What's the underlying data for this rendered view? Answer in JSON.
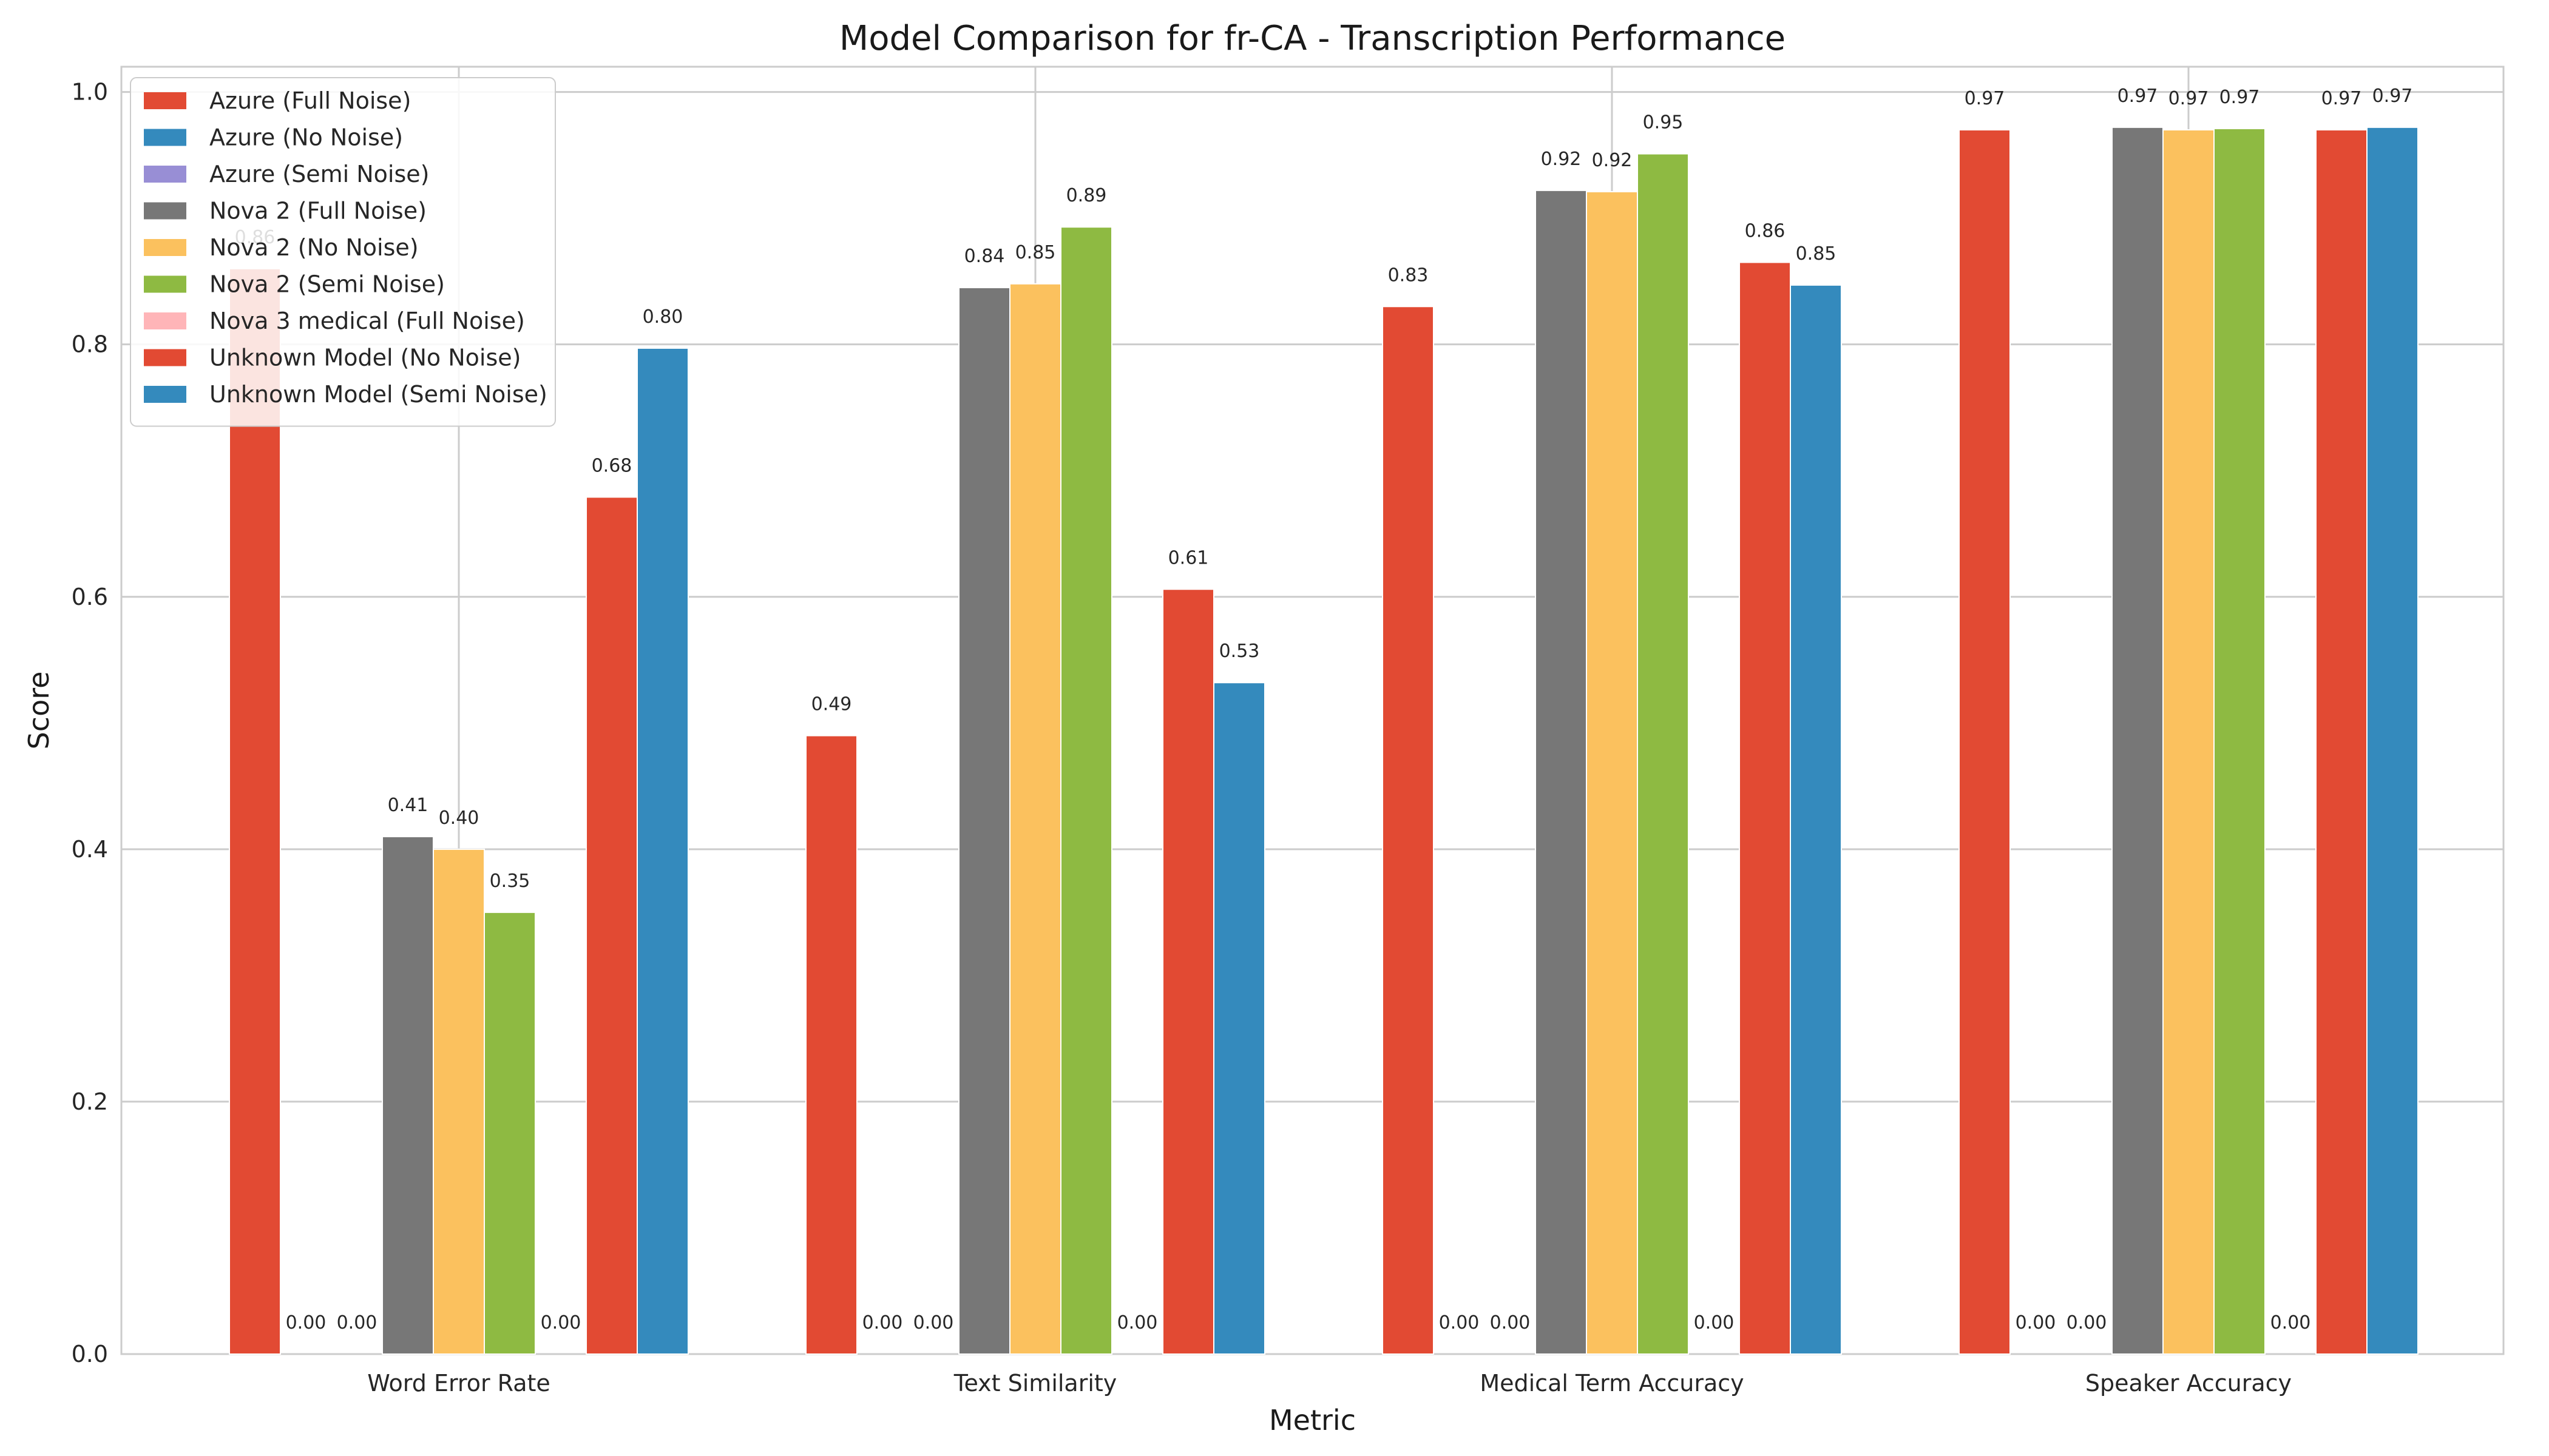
{
  "chart_data": {
    "type": "bar",
    "title": "Model Comparison for fr-CA - Transcription Performance",
    "xlabel": "Metric",
    "ylabel": "Score",
    "ylim": [
      0,
      1.02
    ],
    "yticks": [
      "0.0",
      "0.2",
      "0.4",
      "0.6",
      "0.8",
      "1.0"
    ],
    "ytick_values": [
      0,
      0.2,
      0.4,
      0.6,
      0.8,
      1.0
    ],
    "grid": true,
    "legend_position": "top-left",
    "categories": [
      "Word Error Rate",
      "Text Similarity",
      "Medical Term Accuracy",
      "Speaker Accuracy"
    ],
    "series": [
      {
        "name": "Azure (Full Noise)",
        "color": "#E24A33",
        "values": [
          0.86,
          0.49,
          0.83,
          0.97
        ],
        "labels": [
          "0.86",
          "0.49",
          "0.83",
          "0.97"
        ]
      },
      {
        "name": "Azure (No Noise)",
        "color": "#348ABD",
        "values": [
          0.0,
          0.0,
          0.0,
          0.0
        ],
        "labels": [
          "0.00",
          "0.00",
          "0.00",
          "0.00"
        ]
      },
      {
        "name": "Azure (Semi Noise)",
        "color": "#988ED5",
        "values": [
          0.0,
          0.0,
          0.0,
          0.0
        ],
        "labels": [
          "0.00",
          "0.00",
          "0.00",
          "0.00"
        ]
      },
      {
        "name": "Nova 2 (Full Noise)",
        "color": "#777777",
        "values": [
          0.41,
          0.845,
          0.922,
          0.972
        ],
        "labels": [
          "0.41",
          "0.84",
          "0.92",
          "0.97"
        ]
      },
      {
        "name": "Nova 2 (No Noise)",
        "color": "#FBC15E",
        "values": [
          0.4,
          0.848,
          0.921,
          0.97
        ],
        "labels": [
          "0.40",
          "0.85",
          "0.92",
          "0.97"
        ]
      },
      {
        "name": "Nova 2 (Semi Noise)",
        "color": "#8EBA42",
        "values": [
          0.35,
          0.893,
          0.951,
          0.971
        ],
        "labels": [
          "0.35",
          "0.89",
          "0.95",
          "0.97"
        ]
      },
      {
        "name": "Nova 3 medical (Full Noise)",
        "color": "#FFB5B8",
        "values": [
          0.0,
          0.0,
          0.0,
          0.0
        ],
        "labels": [
          "0.00",
          "0.00",
          "0.00",
          "0.00"
        ]
      },
      {
        "name": "Unknown Model (No Noise)",
        "color": "#E24A33",
        "values": [
          0.679,
          0.606,
          0.865,
          0.97
        ],
        "labels": [
          "0.68",
          "0.61",
          "0.86",
          "0.97"
        ]
      },
      {
        "name": "Unknown Model (Semi Noise)",
        "color": "#348ABD",
        "values": [
          0.797,
          0.532,
          0.847,
          0.972
        ],
        "labels": [
          "0.80",
          "0.53",
          "0.85",
          "0.97"
        ]
      }
    ]
  }
}
